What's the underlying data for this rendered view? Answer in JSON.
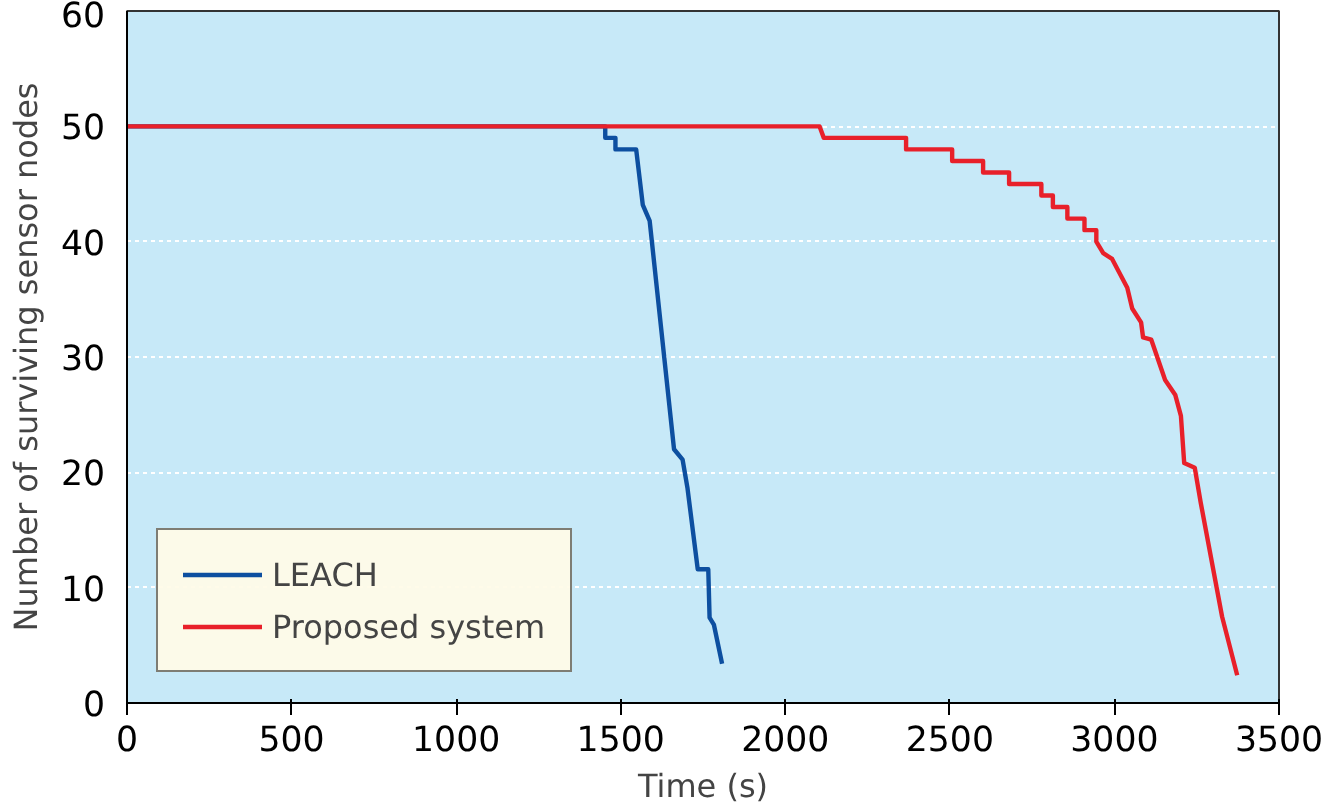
{
  "chart_data": {
    "type": "line",
    "xlabel": "Time (s)",
    "ylabel": "Number of surviving sensor nodes",
    "xlim": [
      0,
      3500
    ],
    "ylim": [
      0,
      60
    ],
    "xticks": [
      0,
      500,
      1000,
      1500,
      2000,
      2500,
      3000,
      3500
    ],
    "yticks": [
      0,
      10,
      20,
      30,
      40,
      50,
      60
    ],
    "grid": "y",
    "legend": "bottom left",
    "marker": "none",
    "line_style": "solid",
    "series": [
      {
        "name": "LEACH",
        "color": "#0d4fa0",
        "x": [
          0,
          1434,
          1453,
          1453,
          1484,
          1484,
          1547,
          1567,
          1588,
          1662,
          1688,
          1703,
          1734,
          1766,
          1770,
          1783,
          1808
        ],
        "values": [
          50,
          50,
          50,
          49,
          49,
          48,
          48,
          43.2,
          41.8,
          22,
          21.1,
          18.6,
          11.6,
          11.6,
          7.4,
          6.8,
          3.4
        ]
      },
      {
        "name": "Proposed system",
        "color": "#e8202a",
        "x": [
          0,
          2104,
          2117,
          2367,
          2367,
          2507,
          2507,
          2601,
          2601,
          2680,
          2680,
          2778,
          2778,
          2813,
          2813,
          2857,
          2857,
          2909,
          2909,
          2945,
          2945,
          2966,
          2993,
          3039,
          3054,
          3081,
          3087,
          3112,
          3154,
          3185,
          3202,
          3212,
          3244,
          3262,
          3327,
          3373
        ],
        "values": [
          50,
          50,
          49,
          49,
          48,
          48,
          47,
          47,
          46,
          46,
          45,
          45,
          44,
          44,
          43,
          43,
          42,
          42,
          41,
          41,
          40,
          39,
          38.5,
          36,
          34.2,
          33,
          31.7,
          31.5,
          28,
          26.7,
          24.9,
          20.8,
          20.4,
          17.4,
          7.5,
          2.4
        ]
      }
    ]
  }
}
